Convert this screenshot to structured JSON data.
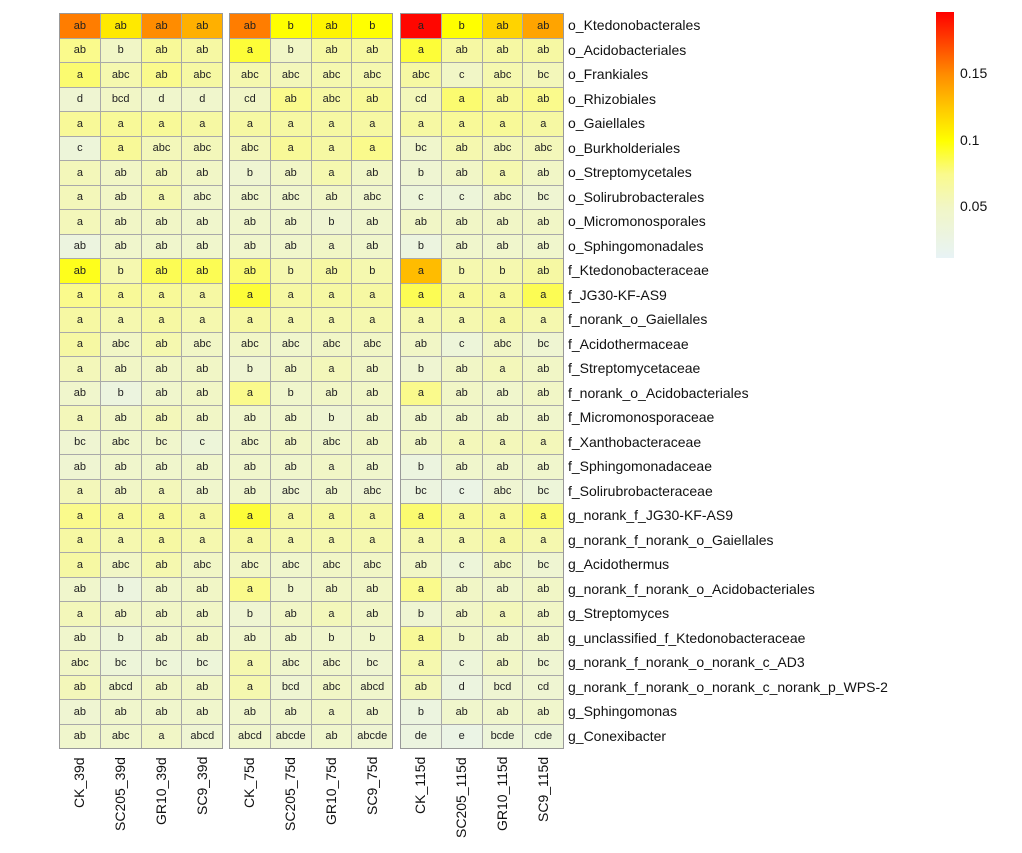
{
  "chart_data": {
    "type": "heatmap",
    "title": "",
    "columns": [
      "CK_39d",
      "SC205_39d",
      "GR10_39d",
      "SC9_39d",
      "CK_75d",
      "SC205_75d",
      "GR10_75d",
      "SC9_75d",
      "CK_115d",
      "SC205_115d",
      "GR10_115d",
      "SC9_115d"
    ],
    "column_groups": [
      4,
      4,
      4
    ],
    "rows": [
      "o_Ktedonobacterales",
      "o_Acidobacteriales",
      "o_Frankiales",
      "o_Rhizobiales",
      "o_Gaiellales",
      "o_Burkholderiales",
      "o_Streptomycetales",
      "o_Solirubrobacterales",
      "o_Micromonosporales",
      "o_Sphingomonadales",
      "f_Ktedonobacteraceae",
      "f_JG30-KF-AS9",
      "f_norank_o_Gaiellales",
      "f_Acidothermaceae",
      "f_Streptomycetaceae",
      "f_norank_o_Acidobacteriales",
      "f_Micromonosporaceae",
      "f_Xanthobacteraceae",
      "f_Sphingomonadaceae",
      "f_Solirubrobacteraceae",
      "g_norank_f_JG30-KF-AS9",
      "g_norank_f_norank_o_Gaiellales",
      "g_Acidothermus",
      "g_norank_f_norank_o_Acidobacteriales",
      "g_Streptomyces",
      "g_unclassified_f_Ktedonobacteraceae",
      "g_norank_f_norank_o_norank_c_AD3",
      "g_norank_f_norank_o_norank_c_norank_p_WPS-2",
      "g_Sphingomonas",
      "g_Conexibacter"
    ],
    "labels": [
      [
        "ab",
        "ab",
        "ab",
        "ab",
        "ab",
        "b",
        "ab",
        "b",
        "a",
        "b",
        "ab",
        "ab"
      ],
      [
        "ab",
        "b",
        "ab",
        "ab",
        "a",
        "b",
        "ab",
        "ab",
        "a",
        "ab",
        "ab",
        "ab"
      ],
      [
        "a",
        "abc",
        "ab",
        "abc",
        "abc",
        "abc",
        "abc",
        "abc",
        "abc",
        "c",
        "abc",
        "bc"
      ],
      [
        "d",
        "bcd",
        "d",
        "d",
        "cd",
        "ab",
        "abc",
        "ab",
        "cd",
        "a",
        "ab",
        "ab"
      ],
      [
        "a",
        "a",
        "a",
        "a",
        "a",
        "a",
        "a",
        "a",
        "a",
        "a",
        "a",
        "a"
      ],
      [
        "c",
        "a",
        "abc",
        "abc",
        "abc",
        "a",
        "a",
        "a",
        "bc",
        "ab",
        "abc",
        "abc"
      ],
      [
        "a",
        "ab",
        "ab",
        "ab",
        "b",
        "ab",
        "a",
        "ab",
        "b",
        "ab",
        "a",
        "ab"
      ],
      [
        "a",
        "ab",
        "a",
        "abc",
        "abc",
        "abc",
        "ab",
        "abc",
        "c",
        "c",
        "abc",
        "bc"
      ],
      [
        "a",
        "ab",
        "ab",
        "ab",
        "ab",
        "ab",
        "b",
        "ab",
        "ab",
        "ab",
        "ab",
        "ab"
      ],
      [
        "ab",
        "ab",
        "ab",
        "ab",
        "ab",
        "ab",
        "a",
        "ab",
        "b",
        "ab",
        "ab",
        "ab"
      ],
      [
        "ab",
        "b",
        "ab",
        "ab",
        "ab",
        "b",
        "ab",
        "b",
        "a",
        "b",
        "b",
        "ab"
      ],
      [
        "a",
        "a",
        "a",
        "a",
        "a",
        "a",
        "a",
        "a",
        "a",
        "a",
        "a",
        "a"
      ],
      [
        "a",
        "a",
        "a",
        "a",
        "a",
        "a",
        "a",
        "a",
        "a",
        "a",
        "a",
        "a"
      ],
      [
        "a",
        "abc",
        "ab",
        "abc",
        "abc",
        "abc",
        "abc",
        "abc",
        "ab",
        "c",
        "abc",
        "bc"
      ],
      [
        "a",
        "ab",
        "ab",
        "ab",
        "b",
        "ab",
        "a",
        "ab",
        "b",
        "ab",
        "a",
        "ab"
      ],
      [
        "ab",
        "b",
        "ab",
        "ab",
        "a",
        "b",
        "ab",
        "ab",
        "a",
        "ab",
        "ab",
        "ab"
      ],
      [
        "a",
        "ab",
        "ab",
        "ab",
        "ab",
        "ab",
        "b",
        "ab",
        "ab",
        "ab",
        "ab",
        "ab"
      ],
      [
        "bc",
        "abc",
        "bc",
        "c",
        "abc",
        "ab",
        "abc",
        "ab",
        "ab",
        "a",
        "a",
        "a"
      ],
      [
        "ab",
        "ab",
        "ab",
        "ab",
        "ab",
        "ab",
        "a",
        "ab",
        "b",
        "ab",
        "ab",
        "ab"
      ],
      [
        "a",
        "ab",
        "a",
        "ab",
        "ab",
        "abc",
        "ab",
        "abc",
        "bc",
        "c",
        "abc",
        "bc"
      ],
      [
        "a",
        "a",
        "a",
        "a",
        "a",
        "a",
        "a",
        "a",
        "a",
        "a",
        "a",
        "a"
      ],
      [
        "a",
        "a",
        "a",
        "a",
        "a",
        "a",
        "a",
        "a",
        "a",
        "a",
        "a",
        "a"
      ],
      [
        "a",
        "abc",
        "ab",
        "abc",
        "abc",
        "abc",
        "abc",
        "abc",
        "ab",
        "c",
        "abc",
        "bc"
      ],
      [
        "ab",
        "b",
        "ab",
        "ab",
        "a",
        "b",
        "ab",
        "ab",
        "a",
        "ab",
        "ab",
        "ab"
      ],
      [
        "a",
        "ab",
        "ab",
        "ab",
        "b",
        "ab",
        "a",
        "ab",
        "b",
        "ab",
        "a",
        "ab"
      ],
      [
        "ab",
        "b",
        "ab",
        "ab",
        "ab",
        "ab",
        "b",
        "b",
        "a",
        "b",
        "ab",
        "ab"
      ],
      [
        "abc",
        "bc",
        "bc",
        "bc",
        "a",
        "abc",
        "abc",
        "bc",
        "a",
        "c",
        "ab",
        "bc"
      ],
      [
        "ab",
        "abcd",
        "ab",
        "ab",
        "a",
        "bcd",
        "abc",
        "abcd",
        "ab",
        "d",
        "bcd",
        "cd"
      ],
      [
        "ab",
        "ab",
        "ab",
        "ab",
        "ab",
        "ab",
        "a",
        "ab",
        "b",
        "ab",
        "ab",
        "ab"
      ],
      [
        "ab",
        "abc",
        "a",
        "abcd",
        "abcd",
        "abcde",
        "ab",
        "abcde",
        "de",
        "e",
        "bcde",
        "cde"
      ]
    ],
    "values": [
      [
        0.155,
        0.11,
        0.15,
        0.135,
        0.155,
        0.1,
        0.105,
        0.1,
        0.195,
        0.1,
        0.12,
        0.14
      ],
      [
        0.075,
        0.05,
        0.07,
        0.065,
        0.09,
        0.05,
        0.065,
        0.065,
        0.09,
        0.065,
        0.065,
        0.065
      ],
      [
        0.08,
        0.06,
        0.075,
        0.065,
        0.06,
        0.055,
        0.06,
        0.06,
        0.065,
        0.05,
        0.06,
        0.055
      ],
      [
        0.04,
        0.05,
        0.045,
        0.045,
        0.05,
        0.075,
        0.065,
        0.07,
        0.055,
        0.08,
        0.07,
        0.075
      ],
      [
        0.07,
        0.07,
        0.07,
        0.065,
        0.065,
        0.065,
        0.065,
        0.065,
        0.065,
        0.07,
        0.07,
        0.065
      ],
      [
        0.035,
        0.07,
        0.055,
        0.055,
        0.055,
        0.07,
        0.065,
        0.075,
        0.045,
        0.06,
        0.055,
        0.055
      ],
      [
        0.055,
        0.05,
        0.055,
        0.05,
        0.04,
        0.05,
        0.06,
        0.05,
        0.04,
        0.05,
        0.06,
        0.05
      ],
      [
        0.055,
        0.05,
        0.06,
        0.045,
        0.045,
        0.045,
        0.05,
        0.045,
        0.035,
        0.035,
        0.045,
        0.04
      ],
      [
        0.055,
        0.05,
        0.05,
        0.045,
        0.045,
        0.045,
        0.04,
        0.045,
        0.05,
        0.05,
        0.05,
        0.05
      ],
      [
        0.03,
        0.045,
        0.045,
        0.045,
        0.045,
        0.045,
        0.05,
        0.045,
        0.03,
        0.045,
        0.045,
        0.045
      ],
      [
        0.095,
        0.06,
        0.085,
        0.085,
        0.08,
        0.06,
        0.065,
        0.06,
        0.13,
        0.06,
        0.06,
        0.065
      ],
      [
        0.075,
        0.07,
        0.07,
        0.065,
        0.09,
        0.065,
        0.065,
        0.065,
        0.085,
        0.07,
        0.07,
        0.085
      ],
      [
        0.065,
        0.06,
        0.065,
        0.06,
        0.065,
        0.06,
        0.06,
        0.06,
        0.06,
        0.06,
        0.065,
        0.06
      ],
      [
        0.065,
        0.05,
        0.06,
        0.05,
        0.05,
        0.045,
        0.05,
        0.05,
        0.05,
        0.035,
        0.05,
        0.04
      ],
      [
        0.055,
        0.05,
        0.05,
        0.05,
        0.04,
        0.05,
        0.055,
        0.05,
        0.04,
        0.05,
        0.055,
        0.05
      ],
      [
        0.045,
        0.03,
        0.045,
        0.05,
        0.075,
        0.045,
        0.05,
        0.05,
        0.075,
        0.05,
        0.045,
        0.05
      ],
      [
        0.055,
        0.05,
        0.055,
        0.05,
        0.045,
        0.045,
        0.04,
        0.045,
        0.045,
        0.045,
        0.045,
        0.045
      ],
      [
        0.04,
        0.045,
        0.045,
        0.035,
        0.045,
        0.05,
        0.045,
        0.05,
        0.05,
        0.055,
        0.055,
        0.055
      ],
      [
        0.04,
        0.045,
        0.045,
        0.045,
        0.045,
        0.045,
        0.05,
        0.045,
        0.03,
        0.045,
        0.045,
        0.045
      ],
      [
        0.055,
        0.05,
        0.055,
        0.045,
        0.045,
        0.04,
        0.045,
        0.04,
        0.03,
        0.025,
        0.04,
        0.035
      ],
      [
        0.075,
        0.07,
        0.07,
        0.065,
        0.09,
        0.065,
        0.065,
        0.065,
        0.08,
        0.07,
        0.07,
        0.08
      ],
      [
        0.065,
        0.06,
        0.065,
        0.06,
        0.065,
        0.06,
        0.06,
        0.06,
        0.06,
        0.06,
        0.065,
        0.06
      ],
      [
        0.065,
        0.05,
        0.06,
        0.05,
        0.05,
        0.045,
        0.05,
        0.05,
        0.05,
        0.035,
        0.05,
        0.04
      ],
      [
        0.045,
        0.03,
        0.045,
        0.05,
        0.075,
        0.045,
        0.05,
        0.05,
        0.075,
        0.05,
        0.045,
        0.05
      ],
      [
        0.055,
        0.05,
        0.05,
        0.05,
        0.04,
        0.05,
        0.055,
        0.05,
        0.04,
        0.05,
        0.055,
        0.05
      ],
      [
        0.045,
        0.035,
        0.045,
        0.05,
        0.045,
        0.045,
        0.045,
        0.045,
        0.07,
        0.05,
        0.045,
        0.045
      ],
      [
        0.05,
        0.035,
        0.035,
        0.035,
        0.06,
        0.045,
        0.045,
        0.04,
        0.06,
        0.035,
        0.05,
        0.04
      ],
      [
        0.055,
        0.045,
        0.05,
        0.05,
        0.06,
        0.04,
        0.05,
        0.045,
        0.055,
        0.03,
        0.04,
        0.04
      ],
      [
        0.04,
        0.045,
        0.045,
        0.045,
        0.045,
        0.045,
        0.05,
        0.045,
        0.03,
        0.045,
        0.045,
        0.045
      ],
      [
        0.045,
        0.045,
        0.05,
        0.04,
        0.045,
        0.04,
        0.045,
        0.04,
        0.03,
        0.025,
        0.035,
        0.035
      ]
    ],
    "color_scale": {
      "range": [
        0.012,
        0.197
      ],
      "stops": [
        [
          0.012,
          "#e8f3f5"
        ],
        [
          0.05,
          "#f1f6c6"
        ],
        [
          0.075,
          "#fafa8c"
        ],
        [
          0.1,
          "#ffff00"
        ],
        [
          0.125,
          "#ffc800"
        ],
        [
          0.15,
          "#ff8c00"
        ],
        [
          0.197,
          "#ff0000"
        ]
      ],
      "ticks": [
        "0.05",
        "0.1",
        "0.15"
      ],
      "tick_values": [
        0.05,
        0.1,
        0.15
      ]
    },
    "legend": "top-right"
  }
}
